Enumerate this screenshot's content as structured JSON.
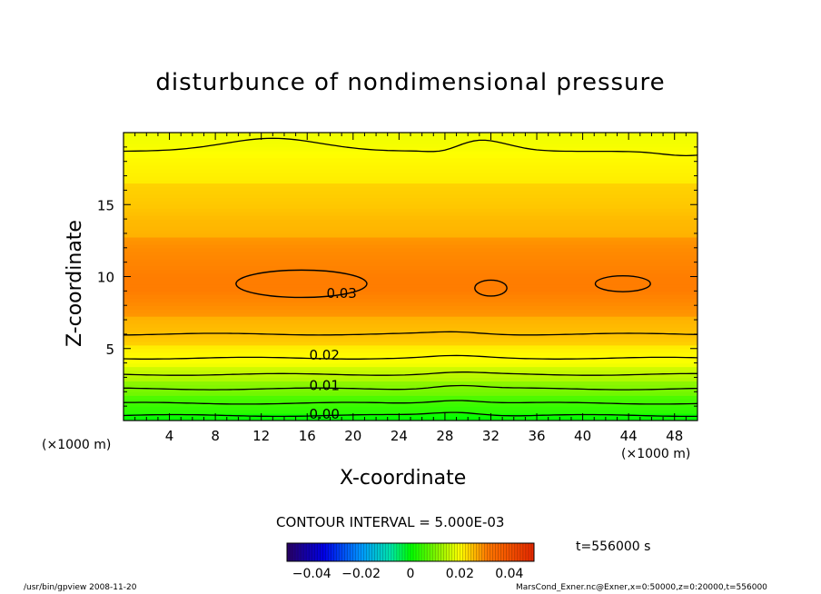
{
  "chart_data": {
    "type": "heatmap",
    "title": "disturbunce of nondimensional pressure",
    "xlabel": "X-coordinate",
    "ylabel": "Z-coordinate",
    "x_unit_label": "(×1000 m)",
    "xlim": [
      0,
      50
    ],
    "ylim": [
      0,
      20
    ],
    "x_ticks": [
      "4",
      "8",
      "12",
      "16",
      "20",
      "24",
      "28",
      "32",
      "36",
      "40",
      "44",
      "48"
    ],
    "y_ticks": [
      "5",
      "10",
      "15"
    ],
    "contour_interval_label": "CONTOUR INTERVAL = 5.000E-03",
    "contour_labels": [
      {
        "text": "0.00",
        "x": 17.5,
        "z": 0.5
      },
      {
        "text": "0.01",
        "x": 17.5,
        "z": 2.5
      },
      {
        "text": "0.02",
        "x": 17.5,
        "z": 4.6
      },
      {
        "text": "0.03",
        "x": 19.0,
        "z": 8.9
      }
    ],
    "profile": {
      "z": [
        0,
        1,
        2,
        3,
        4,
        5,
        6,
        7,
        8,
        9,
        10,
        11,
        12,
        13,
        14,
        15,
        16,
        17,
        18,
        19,
        20
      ],
      "value": [
        0.0,
        0.004,
        0.009,
        0.014,
        0.019,
        0.022,
        0.025,
        0.027,
        0.029,
        0.031,
        0.031,
        0.03,
        0.029,
        0.027,
        0.026,
        0.024,
        0.023,
        0.022,
        0.021,
        0.019,
        0.018
      ]
    },
    "colorbar": {
      "ticks": [
        "−0.04",
        "−0.02",
        "0",
        "0.02",
        "0.04"
      ],
      "range": [
        -0.05,
        0.05
      ]
    },
    "time_label": "t=556000 s",
    "colors": {
      "low": "#00ff00",
      "mid": "#ffff00",
      "high": "#ff8000",
      "peak": "#ff6a00"
    }
  },
  "footer": {
    "left": "/usr/bin/gpview  2008-11-20",
    "right": "MarsCond_Exner.nc@Exner,x=0:50000,z=0:20000,t=556000"
  }
}
